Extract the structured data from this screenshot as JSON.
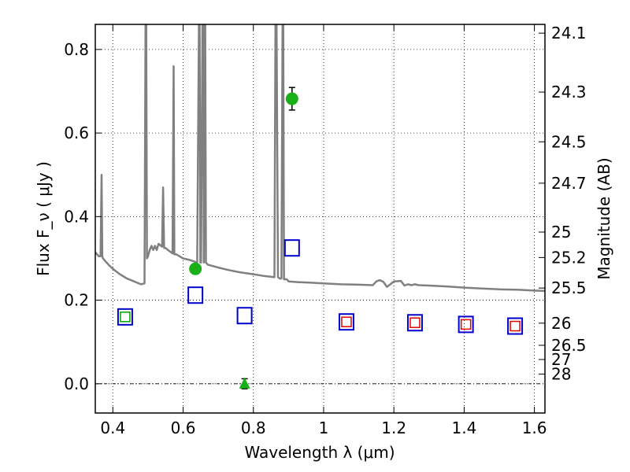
{
  "chart_data": {
    "type": "scatter",
    "title": "",
    "xlabel": "Wavelength  λ (μm)",
    "ylabel": "Flux  F_ν  ( μJy )",
    "ylabel_right": "Magnitude (AB)",
    "xlim": [
      0.35,
      1.63
    ],
    "ylim": [
      -0.07,
      0.86
    ],
    "grid": true,
    "x_ticks": [
      {
        "v": 0.4,
        "label": "0.4"
      },
      {
        "v": 0.6,
        "label": "0.6"
      },
      {
        "v": 0.8,
        "label": "0.8"
      },
      {
        "v": 1.0,
        "label": "1"
      },
      {
        "v": 1.2,
        "label": "1.2"
      },
      {
        "v": 1.4,
        "label": "1.4"
      },
      {
        "v": 1.6,
        "label": "1.6"
      }
    ],
    "y_ticks": [
      {
        "v": 0.0,
        "label": "0.0"
      },
      {
        "v": 0.2,
        "label": "0.2"
      },
      {
        "v": 0.4,
        "label": "0.4"
      },
      {
        "v": 0.6,
        "label": "0.6"
      },
      {
        "v": 0.8,
        "label": "0.8"
      }
    ],
    "mag_ticks": [
      {
        "v": 0.839,
        "label": "24.1"
      },
      {
        "v": 0.698,
        "label": "24.3"
      },
      {
        "v": 0.579,
        "label": "24.5"
      },
      {
        "v": 0.48,
        "label": "24.7"
      },
      {
        "v": 0.363,
        "label": "25"
      },
      {
        "v": 0.302,
        "label": "25.2"
      },
      {
        "v": 0.229,
        "label": "25.5"
      },
      {
        "v": 0.145,
        "label": "26"
      },
      {
        "v": 0.092,
        "label": "26.5"
      },
      {
        "v": 0.058,
        "label": "27"
      },
      {
        "v": 0.023,
        "label": "28"
      }
    ],
    "model_spectrum": {
      "color": "#808080",
      "x": [
        0.35,
        0.355,
        0.36,
        0.365,
        0.368,
        0.37,
        0.372,
        0.38,
        0.39,
        0.4,
        0.42,
        0.44,
        0.46,
        0.48,
        0.49,
        0.493,
        0.495,
        0.497,
        0.5,
        0.505,
        0.51,
        0.515,
        0.52,
        0.525,
        0.53,
        0.54,
        0.543,
        0.546,
        0.55,
        0.56,
        0.57,
        0.573,
        0.575,
        0.577,
        0.58,
        0.59,
        0.6,
        0.61,
        0.62,
        0.63,
        0.64,
        0.645,
        0.647,
        0.649,
        0.651,
        0.655,
        0.657,
        0.659,
        0.661,
        0.663,
        0.665,
        0.667,
        0.67,
        0.7,
        0.73,
        0.76,
        0.8,
        0.83,
        0.86,
        0.863,
        0.866,
        0.87,
        0.875,
        0.88,
        0.883,
        0.885,
        0.887,
        0.889,
        0.891,
        0.895,
        0.9,
        0.93,
        0.96,
        1.0,
        1.05,
        1.1,
        1.14,
        1.15,
        1.16,
        1.17,
        1.18,
        1.19,
        1.2,
        1.22,
        1.23,
        1.24,
        1.25,
        1.26,
        1.27,
        1.3,
        1.35,
        1.4,
        1.45,
        1.5,
        1.55,
        1.6,
        1.63
      ],
      "y": [
        0.315,
        0.31,
        0.305,
        0.305,
        0.5,
        0.305,
        0.3,
        0.292,
        0.283,
        0.275,
        0.262,
        0.252,
        0.245,
        0.238,
        0.24,
        0.86,
        0.86,
        0.3,
        0.305,
        0.32,
        0.33,
        0.32,
        0.33,
        0.32,
        0.335,
        0.328,
        0.47,
        0.325,
        0.325,
        0.318,
        0.312,
        0.76,
        0.31,
        0.31,
        0.31,
        0.305,
        0.3,
        0.298,
        0.296,
        0.293,
        0.29,
        0.86,
        0.86,
        0.29,
        0.29,
        0.86,
        0.86,
        0.29,
        0.86,
        0.86,
        0.29,
        0.288,
        0.285,
        0.278,
        0.272,
        0.267,
        0.262,
        0.258,
        0.255,
        0.86,
        0.86,
        0.255,
        0.252,
        0.252,
        0.86,
        0.86,
        0.25,
        0.25,
        0.25,
        0.25,
        0.245,
        0.243,
        0.242,
        0.24,
        0.238,
        0.237,
        0.236,
        0.245,
        0.248,
        0.244,
        0.232,
        0.238,
        0.245,
        0.246,
        0.235,
        0.238,
        0.236,
        0.238,
        0.236,
        0.235,
        0.233,
        0.23,
        0.228,
        0.226,
        0.225,
        0.223,
        0.222
      ]
    },
    "series": [
      {
        "marker": "circle",
        "color": "#1ab01a",
        "points": [
          {
            "x": 0.635,
            "y": 0.275,
            "err": 0.012
          },
          {
            "x": 0.91,
            "y": 0.682,
            "err": 0.027
          }
        ]
      },
      {
        "marker": "triangle",
        "color": "#1ab01a",
        "points": [
          {
            "x": 0.775,
            "y": 0.0,
            "err": 0.012
          }
        ]
      },
      {
        "marker": "open-square",
        "color": "#0000cc",
        "points": [
          {
            "x": 0.435,
            "y": 0.16
          },
          {
            "x": 0.635,
            "y": 0.212
          },
          {
            "x": 0.775,
            "y": 0.163
          },
          {
            "x": 0.91,
            "y": 0.325
          },
          {
            "x": 1.065,
            "y": 0.148
          },
          {
            "x": 1.26,
            "y": 0.146
          },
          {
            "x": 1.405,
            "y": 0.142
          },
          {
            "x": 1.545,
            "y": 0.138
          }
        ]
      },
      {
        "marker": "small-open-square-green",
        "color": "#00a000",
        "points": [
          {
            "x": 0.435,
            "y": 0.16
          }
        ]
      },
      {
        "marker": "small-open-square-red",
        "color": "#e00000",
        "points": [
          {
            "x": 1.065,
            "y": 0.148
          },
          {
            "x": 1.26,
            "y": 0.146
          },
          {
            "x": 1.405,
            "y": 0.142
          },
          {
            "x": 1.545,
            "y": 0.138
          }
        ]
      }
    ]
  }
}
